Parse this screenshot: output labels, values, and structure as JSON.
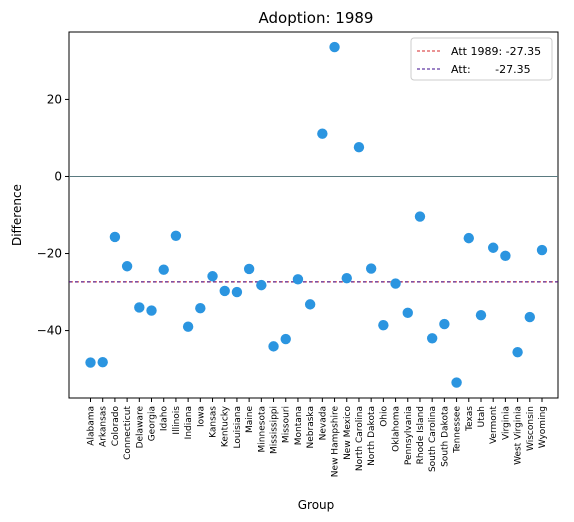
{
  "chart_data": {
    "type": "scatter",
    "title": "Adoption: 1989",
    "xlabel": "Group",
    "ylabel": "Difference",
    "ylim": [
      -57.5,
      37.5
    ],
    "yticks": [
      20,
      0,
      -20,
      -40
    ],
    "ytick_labels": [
      "20",
      "0",
      "−20",
      "−40"
    ],
    "zero_line": 0,
    "reference_lines": [
      {
        "label": "Att 1989: -27.35",
        "value": -27.35,
        "color": "#d62728",
        "style": "dashed"
      },
      {
        "label": "Att:       -27.35",
        "value": -27.35,
        "color": "#3b0a8c",
        "style": "dashed"
      }
    ],
    "legend_position": "top-right",
    "marker_color": "#2b95e0",
    "zero_line_color": "#5a7a80",
    "categories": [
      "Alabama",
      "Arkansas",
      "Colorado",
      "Connecticut",
      "Delaware",
      "Georgia",
      "Idaho",
      "Illinois",
      "Indiana",
      "Iowa",
      "Kansas",
      "Kentucky",
      "Louisiana",
      "Maine",
      "Minnesota",
      "Mississippi",
      "Missouri",
      "Montana",
      "Nebraska",
      "Nevada",
      "New Hampshire",
      "New Mexico",
      "North Carolina",
      "North Dakota",
      "Ohio",
      "Oklahoma",
      "Pennsylvania",
      "Rhode Island",
      "South Carolina",
      "South Dakota",
      "Tennessee",
      "Texas",
      "Utah",
      "Vermont",
      "Virginia",
      "West Virginia",
      "Wisconsin",
      "Wyoming"
    ],
    "values": [
      -48.3,
      -48.2,
      -15.7,
      -23.3,
      -34.0,
      -34.8,
      -24.2,
      -15.4,
      -39.0,
      -34.2,
      -25.9,
      -29.7,
      -30.0,
      -24.0,
      -28.2,
      -44.1,
      -42.2,
      -26.7,
      -33.2,
      11.1,
      33.6,
      -26.4,
      7.6,
      -23.9,
      -38.6,
      -27.8,
      -35.4,
      -10.4,
      -42.0,
      -38.3,
      -53.5,
      -16.0,
      -36.0,
      -18.5,
      -20.6,
      -45.6,
      -36.5,
      -19.1
    ]
  }
}
